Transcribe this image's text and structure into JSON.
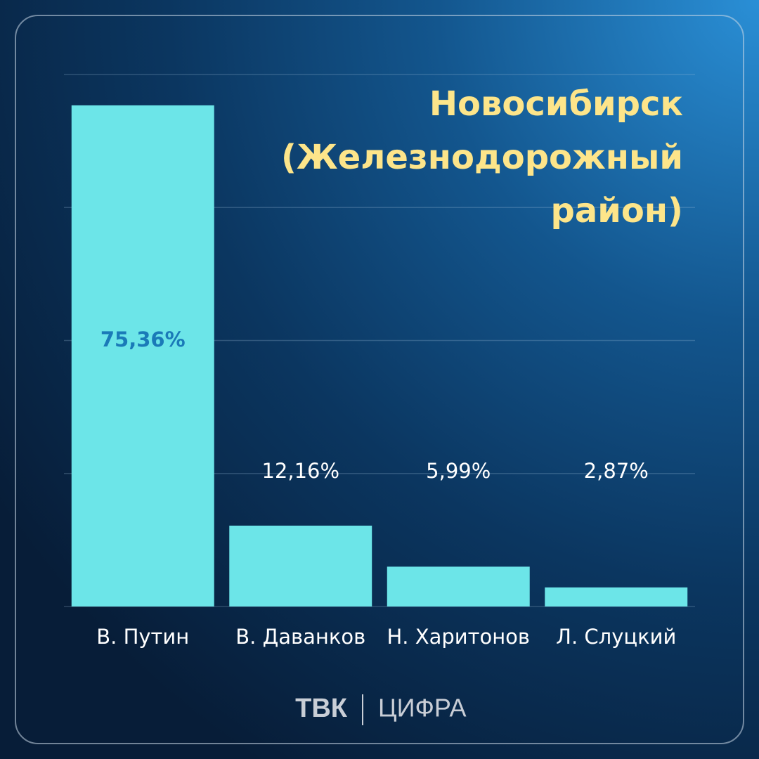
{
  "chart_data": {
    "type": "bar",
    "title": "Новосибирск (Железнодорожный район)",
    "categories": [
      "В. Путин",
      "В. Даванков",
      "Н. Харитонов",
      "Л. Слуцкий"
    ],
    "values": [
      75.36,
      12.16,
      5.99,
      2.87
    ],
    "value_labels": [
      "75,36%",
      "12,16%",
      "5,99%",
      "2,87%"
    ],
    "color": "#6ce5e8",
    "ylim": [
      0,
      80
    ],
    "yticks": [
      0,
      20,
      40,
      60,
      80
    ],
    "grid": true
  },
  "footer": {
    "brand": "ТВК",
    "product": "ЦИФРА"
  }
}
